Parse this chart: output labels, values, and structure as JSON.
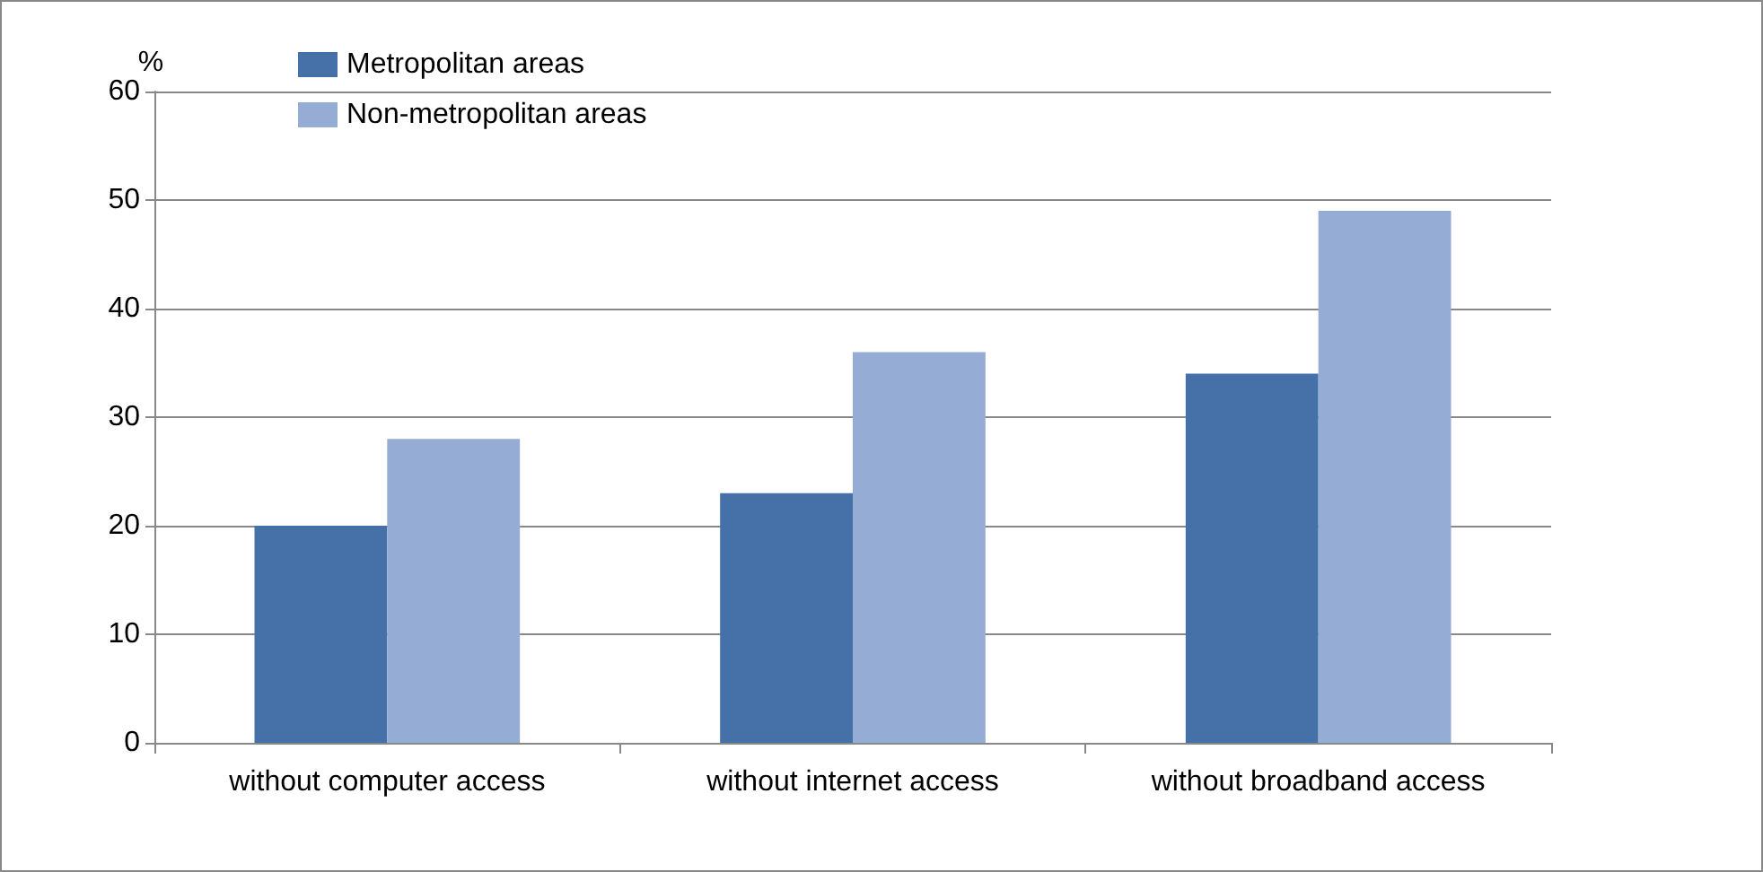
{
  "chart_data": {
    "type": "bar",
    "ylabel": "%",
    "categories": [
      "without computer access",
      "without internet access",
      "without broadband access"
    ],
    "series": [
      {
        "name": "Metropolitan areas",
        "color": "#4571a8",
        "values": [
          20,
          23,
          34
        ]
      },
      {
        "name": "Non-metropolitan areas",
        "color": "#95acd5",
        "values": [
          28,
          36,
          49
        ]
      }
    ],
    "ylim": [
      0,
      60
    ],
    "yticks": [
      0,
      10,
      20,
      30,
      40,
      50,
      60
    ],
    "grid": "y",
    "legend": "top left"
  }
}
